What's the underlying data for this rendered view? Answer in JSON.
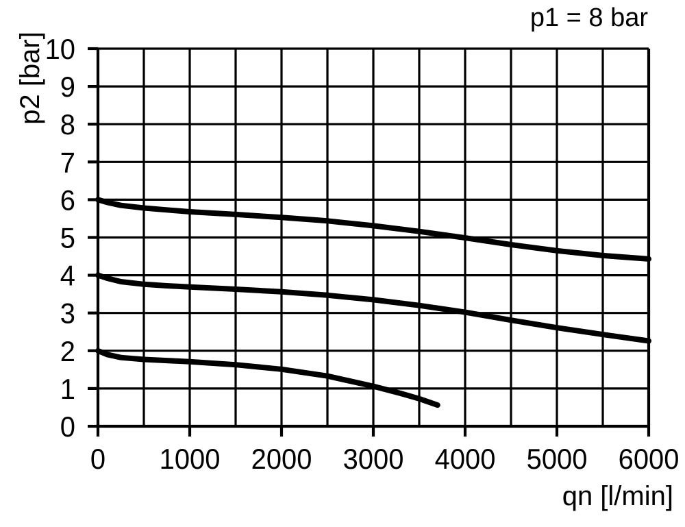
{
  "chart_data": {
    "type": "line",
    "title": "p1 = 8 bar",
    "xlabel": "qn [l/min]",
    "ylabel": "p2 [bar]",
    "xlim": [
      0,
      6000
    ],
    "ylim": [
      0,
      10
    ],
    "x_grid_step": 500,
    "x_tick_step": 1000,
    "y_grid_step": 1,
    "y_tick_step": 1,
    "grid": true,
    "legend": false,
    "x_tick_labels": [
      "0",
      "1000",
      "2000",
      "3000",
      "4000",
      "5000",
      "6000"
    ],
    "y_tick_labels": [
      "0",
      "1",
      "2",
      "3",
      "4",
      "5",
      "6",
      "7",
      "8",
      "9",
      "10"
    ],
    "series": [
      {
        "p2_start": 6,
        "points": [
          [
            0,
            6.0
          ],
          [
            100,
            5.93
          ],
          [
            250,
            5.85
          ],
          [
            500,
            5.78
          ],
          [
            750,
            5.73
          ],
          [
            1000,
            5.68
          ],
          [
            1500,
            5.61
          ],
          [
            2000,
            5.53
          ],
          [
            2500,
            5.44
          ],
          [
            3000,
            5.31
          ],
          [
            3500,
            5.16
          ],
          [
            4000,
            4.99
          ],
          [
            4500,
            4.81
          ],
          [
            5000,
            4.65
          ],
          [
            5500,
            4.52
          ],
          [
            6000,
            4.43
          ]
        ]
      },
      {
        "p2_start": 4,
        "points": [
          [
            0,
            4.0
          ],
          [
            100,
            3.92
          ],
          [
            250,
            3.83
          ],
          [
            500,
            3.76
          ],
          [
            750,
            3.72
          ],
          [
            1000,
            3.69
          ],
          [
            1500,
            3.63
          ],
          [
            2000,
            3.56
          ],
          [
            2500,
            3.47
          ],
          [
            3000,
            3.35
          ],
          [
            3500,
            3.2
          ],
          [
            4000,
            3.02
          ],
          [
            4500,
            2.81
          ],
          [
            5000,
            2.61
          ],
          [
            5500,
            2.43
          ],
          [
            6000,
            2.26
          ]
        ]
      },
      {
        "p2_start": 2,
        "points": [
          [
            0,
            2.0
          ],
          [
            100,
            1.9
          ],
          [
            250,
            1.82
          ],
          [
            500,
            1.77
          ],
          [
            750,
            1.74
          ],
          [
            1000,
            1.71
          ],
          [
            1500,
            1.63
          ],
          [
            2000,
            1.51
          ],
          [
            2500,
            1.33
          ],
          [
            3000,
            1.06
          ],
          [
            3300,
            0.87
          ],
          [
            3500,
            0.73
          ],
          [
            3700,
            0.56
          ]
        ]
      }
    ],
    "colors": {
      "curve": "#000000",
      "grid": "#000000",
      "text": "#000000",
      "background": "#ffffff"
    }
  }
}
